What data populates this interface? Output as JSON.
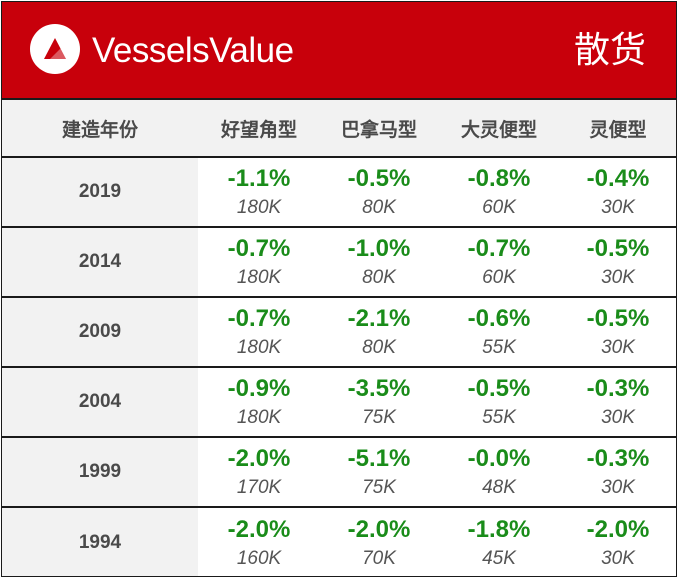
{
  "brand": {
    "name": "VesselsValue",
    "logo_icon": "vesselsvalue-logo-icon"
  },
  "banner_title": "散货",
  "colors": {
    "banner": "#c8000b",
    "positive": "#1a8c1a",
    "header_bg": "#f2f2f2"
  },
  "table": {
    "headers": [
      "建造年份",
      "好望角型",
      "巴拿马型",
      "大灵便型",
      "灵便型"
    ],
    "rows": [
      {
        "year": "2019",
        "cells": [
          {
            "pct": "-1.1%",
            "val": "180K"
          },
          {
            "pct": "-0.5%",
            "val": "80K"
          },
          {
            "pct": "-0.8%",
            "val": "60K"
          },
          {
            "pct": "-0.4%",
            "val": "30K"
          }
        ]
      },
      {
        "year": "2014",
        "cells": [
          {
            "pct": "-0.7%",
            "val": "180K"
          },
          {
            "pct": "-1.0%",
            "val": "80K"
          },
          {
            "pct": "-0.7%",
            "val": "60K"
          },
          {
            "pct": "-0.5%",
            "val": "30K"
          }
        ]
      },
      {
        "year": "2009",
        "cells": [
          {
            "pct": "-0.7%",
            "val": "180K"
          },
          {
            "pct": "-2.1%",
            "val": "80K"
          },
          {
            "pct": "-0.6%",
            "val": "55K"
          },
          {
            "pct": "-0.5%",
            "val": "30K"
          }
        ]
      },
      {
        "year": "2004",
        "cells": [
          {
            "pct": "-0.9%",
            "val": "180K"
          },
          {
            "pct": "-3.5%",
            "val": "75K"
          },
          {
            "pct": "-0.5%",
            "val": "55K"
          },
          {
            "pct": "-0.3%",
            "val": "30K"
          }
        ]
      },
      {
        "year": "1999",
        "cells": [
          {
            "pct": "-2.0%",
            "val": "170K"
          },
          {
            "pct": "-5.1%",
            "val": "75K"
          },
          {
            "pct": "-0.0%",
            "val": "48K"
          },
          {
            "pct": "-0.3%",
            "val": "30K"
          }
        ]
      },
      {
        "year": "1994",
        "cells": [
          {
            "pct": "-2.0%",
            "val": "160K"
          },
          {
            "pct": "-2.0%",
            "val": "70K"
          },
          {
            "pct": "-1.8%",
            "val": "45K"
          },
          {
            "pct": "-2.0%",
            "val": "30K"
          }
        ]
      }
    ]
  }
}
